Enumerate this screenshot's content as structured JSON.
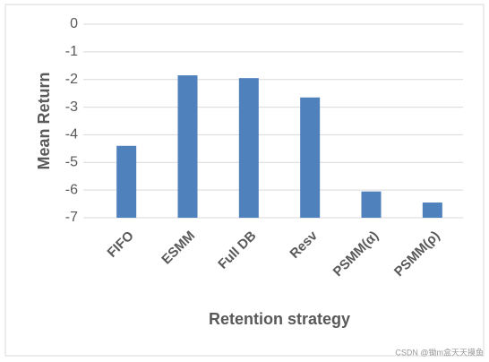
{
  "chart_data": {
    "type": "bar",
    "categories": [
      "FIFO",
      "ESMM",
      "Full DB",
      "Resv",
      "PSMM(α)",
      "PSMM(ρ)"
    ],
    "values": [
      -4.4,
      -1.85,
      -1.95,
      -2.65,
      -6.05,
      -6.45
    ],
    "color": "#4f81bd",
    "ylim": [
      -7,
      0
    ],
    "yticks": [
      0,
      -1,
      -2,
      -3,
      -4,
      -5,
      -6,
      -7
    ],
    "grid": true,
    "x_label": "Retention strategy",
    "y_label": "Mean Return",
    "watermark": "CSDN @锄m盒天天摸鱼"
  }
}
